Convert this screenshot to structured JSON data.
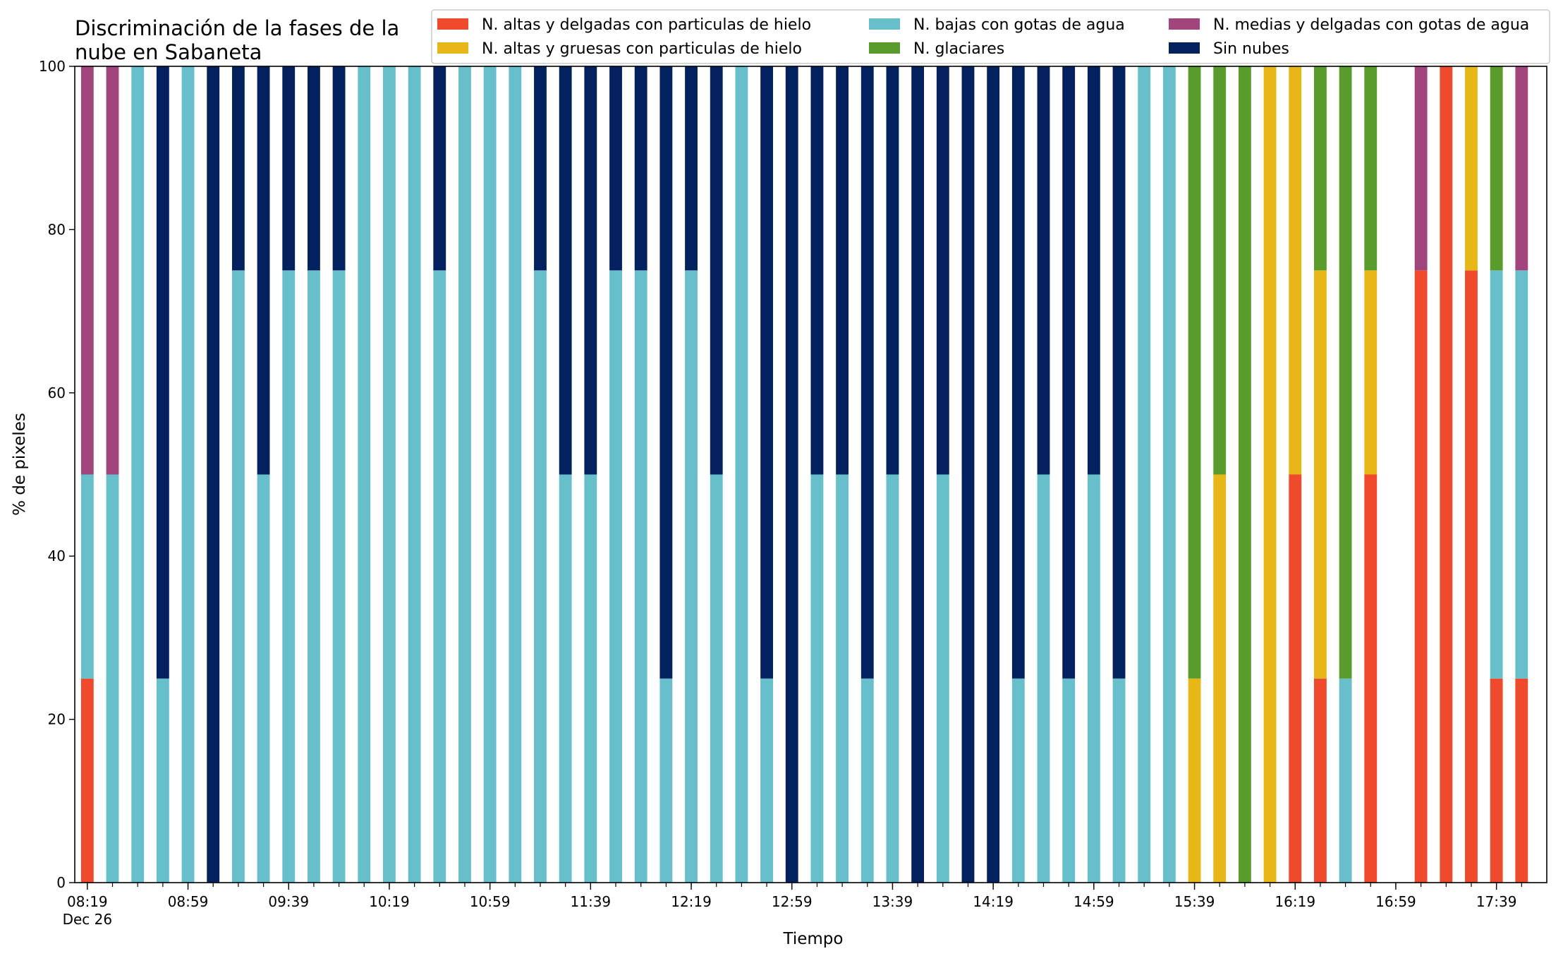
{
  "chart_data": {
    "type": "bar",
    "stacked": true,
    "title_lines": [
      "Discriminación de la fases de la",
      "nube en Sabaneta"
    ],
    "xlabel": "Tiempo",
    "ylabel": "% de pixeles",
    "ylim": [
      0,
      100
    ],
    "yticks": [
      0,
      20,
      40,
      60,
      80,
      100
    ],
    "xtick_labels": [
      "08:19",
      "08:59",
      "09:39",
      "10:19",
      "10:59",
      "11:39",
      "12:19",
      "12:59",
      "13:39",
      "14:19",
      "14:59",
      "15:39",
      "16:19",
      "16:59",
      "17:39"
    ],
    "xtick_sublabel": "Dec 26",
    "grid": false,
    "legend_position": "top-right",
    "categories": [
      "08:19",
      "08:29",
      "08:39",
      "08:49",
      "08:59",
      "09:09",
      "09:19",
      "09:29",
      "09:39",
      "09:49",
      "09:59",
      "10:09",
      "10:19",
      "10:29",
      "10:39",
      "10:49",
      "10:59",
      "11:09",
      "11:19",
      "11:29",
      "11:39",
      "11:49",
      "11:59",
      "12:09",
      "12:19",
      "12:29",
      "12:39",
      "12:49",
      "12:59",
      "13:09",
      "13:19",
      "13:29",
      "13:39",
      "13:49",
      "13:59",
      "14:09",
      "14:19",
      "14:29",
      "14:39",
      "14:49",
      "14:59",
      "15:09",
      "15:19",
      "15:29",
      "15:39",
      "15:49",
      "15:59",
      "16:09",
      "16:19",
      "16:29",
      "16:39",
      "16:49",
      "16:59",
      "17:09",
      "17:19",
      "17:29",
      "17:39",
      "17:49"
    ],
    "series": [
      {
        "name": "N. altas y delgadas con particulas de hielo",
        "color": "#f04a2c",
        "values": [
          25,
          0,
          0,
          0,
          0,
          0,
          0,
          0,
          0,
          0,
          0,
          0,
          0,
          0,
          0,
          0,
          0,
          0,
          0,
          0,
          0,
          0,
          0,
          0,
          0,
          0,
          0,
          0,
          0,
          0,
          0,
          0,
          0,
          0,
          0,
          0,
          0,
          0,
          0,
          0,
          0,
          0,
          0,
          0,
          0,
          0,
          0,
          0,
          50,
          25,
          0,
          50,
          null,
          75,
          100,
          75,
          25,
          25
        ]
      },
      {
        "name": "N. altas y gruesas con particulas de hielo",
        "color": "#e6b716",
        "values": [
          0,
          0,
          0,
          0,
          0,
          0,
          0,
          0,
          0,
          0,
          0,
          0,
          0,
          0,
          0,
          0,
          0,
          0,
          0,
          0,
          0,
          0,
          0,
          0,
          0,
          0,
          0,
          0,
          0,
          0,
          0,
          0,
          0,
          0,
          0,
          0,
          0,
          0,
          0,
          0,
          0,
          0,
          0,
          0,
          25,
          50,
          0,
          100,
          50,
          50,
          0,
          25,
          null,
          0,
          0,
          25,
          0,
          0
        ]
      },
      {
        "name": "N. bajas con gotas de agua",
        "color": "#66bfca",
        "values": [
          25,
          50,
          100,
          25,
          100,
          0,
          75,
          50,
          75,
          75,
          75,
          100,
          100,
          100,
          75,
          100,
          100,
          100,
          75,
          50,
          50,
          75,
          75,
          25,
          75,
          50,
          100,
          25,
          0,
          50,
          50,
          25,
          50,
          0,
          50,
          0,
          0,
          25,
          50,
          25,
          50,
          25,
          100,
          100,
          0,
          0,
          0,
          0,
          0,
          0,
          25,
          0,
          null,
          0,
          0,
          0,
          50,
          50
        ]
      },
      {
        "name": "N. glaciares",
        "color": "#599c2b",
        "values": [
          0,
          0,
          0,
          0,
          0,
          0,
          0,
          0,
          0,
          0,
          0,
          0,
          0,
          0,
          0,
          0,
          0,
          0,
          0,
          0,
          0,
          0,
          0,
          0,
          0,
          0,
          0,
          0,
          0,
          0,
          0,
          0,
          0,
          0,
          0,
          0,
          0,
          0,
          0,
          0,
          0,
          0,
          0,
          0,
          75,
          50,
          100,
          0,
          0,
          25,
          75,
          25,
          null,
          0,
          0,
          0,
          25,
          0
        ]
      },
      {
        "name": "N. medias y delgadas con gotas de agua",
        "color": "#a3457d",
        "values": [
          50,
          50,
          0,
          0,
          0,
          0,
          0,
          0,
          0,
          0,
          0,
          0,
          0,
          0,
          0,
          0,
          0,
          0,
          0,
          0,
          0,
          0,
          0,
          0,
          0,
          0,
          0,
          0,
          0,
          0,
          0,
          0,
          0,
          0,
          0,
          0,
          0,
          0,
          0,
          0,
          0,
          0,
          0,
          0,
          0,
          0,
          0,
          0,
          0,
          0,
          0,
          0,
          null,
          25,
          0,
          0,
          0,
          25
        ]
      },
      {
        "name": "Sin nubes",
        "color": "#03215f",
        "values": [
          0,
          0,
          0,
          75,
          0,
          100,
          25,
          50,
          25,
          25,
          25,
          0,
          0,
          0,
          25,
          0,
          0,
          0,
          25,
          50,
          50,
          25,
          25,
          75,
          25,
          50,
          0,
          75,
          100,
          50,
          50,
          75,
          50,
          100,
          50,
          100,
          100,
          75,
          50,
          75,
          50,
          75,
          0,
          0,
          0,
          0,
          0,
          0,
          0,
          0,
          0,
          0,
          null,
          0,
          0,
          0,
          0,
          0
        ]
      }
    ]
  }
}
